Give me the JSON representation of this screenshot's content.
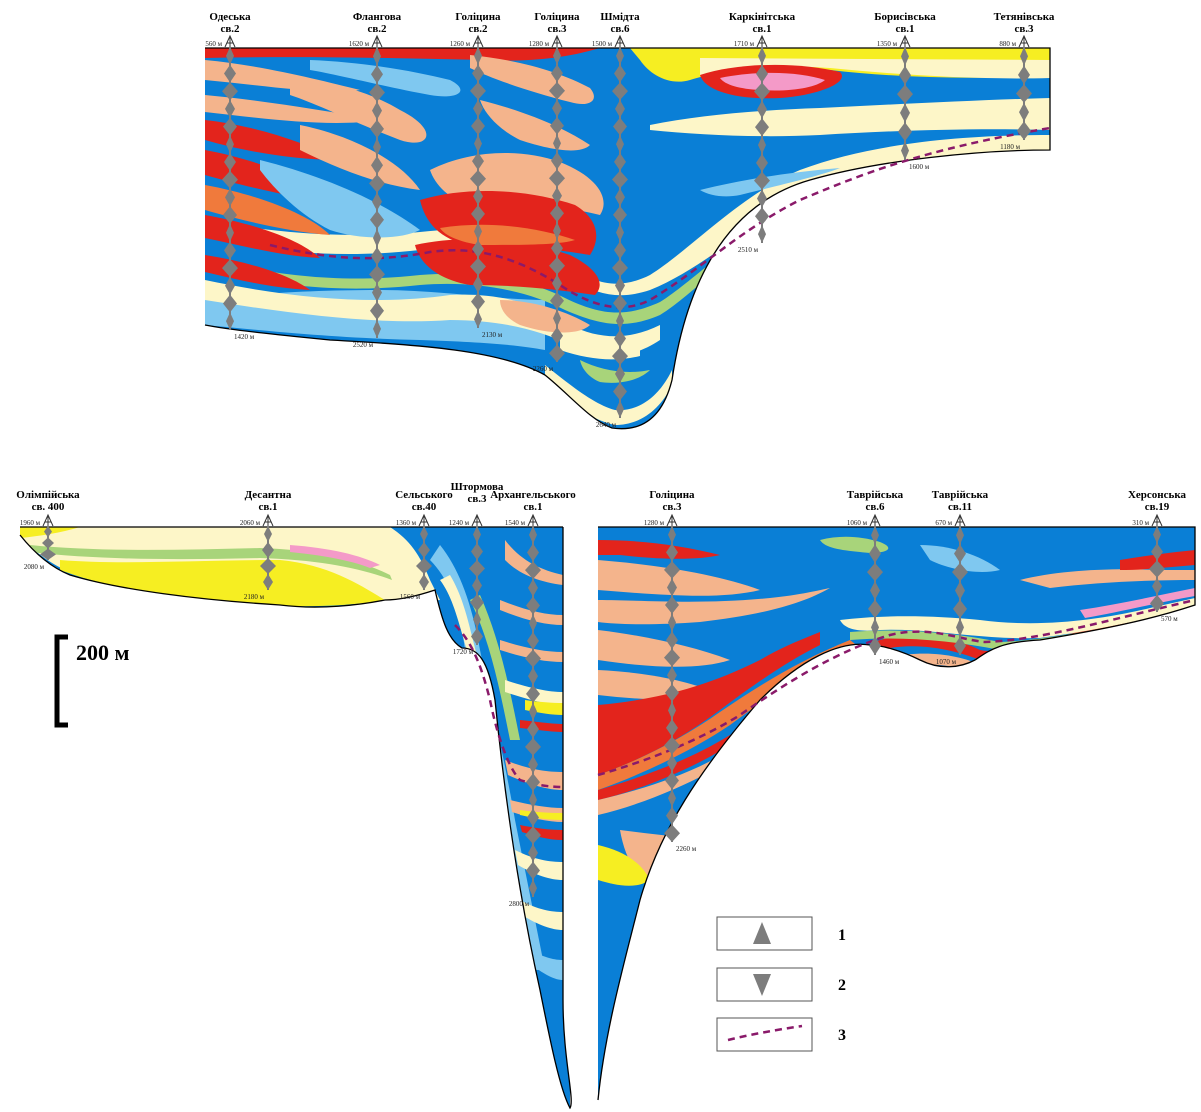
{
  "top_section": {
    "wells": [
      {
        "name": "Одеська",
        "num": "св.2",
        "top": "560 м",
        "bottom": "1420 м"
      },
      {
        "name": "Флангова",
        "num": "св.2",
        "top": "1620 м",
        "bottom": "2520 м"
      },
      {
        "name": "Голіцина",
        "num": "св.2",
        "top": "1260 м",
        "bottom": "2130 м"
      },
      {
        "name": "Голіцина",
        "num": "св.3",
        "top": "1280 м",
        "bottom": "2260 м"
      },
      {
        "name": "Шмідта",
        "num": "св.6",
        "top": "1500 м",
        "bottom": "2640 м"
      },
      {
        "name": "Каркінітська",
        "num": "св.1",
        "top": "1710 м",
        "bottom": "2510 м"
      },
      {
        "name": "Борисівська",
        "num": "св.1",
        "top": "1350 м",
        "bottom": "1600 м"
      },
      {
        "name": "Тетянівська",
        "num": "св.3",
        "top": "880 м",
        "bottom": "1180 м"
      }
    ]
  },
  "bottom_left_section": {
    "wells": [
      {
        "name": "Олімпійська",
        "num": "св. 400",
        "top": "1960 м",
        "bottom": "2080 м"
      },
      {
        "name": "Десантна",
        "num": "св.1",
        "top": "2060 м",
        "bottom": "2180 м"
      },
      {
        "name": "Сельського",
        "num": "св.40",
        "top": "1360 м",
        "bottom": "1560 м"
      },
      {
        "name": "Штормова",
        "num": "св.3",
        "top": "1240 м",
        "bottom": "1720 м"
      },
      {
        "name": "Архангельського",
        "num": "св.1",
        "top": "1540 м",
        "bottom": "2800 м"
      }
    ]
  },
  "bottom_right_section": {
    "wells": [
      {
        "name": "Голіцина",
        "num": "св.3",
        "top": "1280 м",
        "bottom": "2260 м"
      },
      {
        "name": "Таврійська",
        "num": "св.6",
        "top": "1060 м",
        "bottom": "1460 м"
      },
      {
        "name": "Таврійська",
        "num": "св.11",
        "top": "670 м",
        "bottom": "1070 м"
      },
      {
        "name": "Херсонська",
        "num": "св.19",
        "top": "310 м",
        "bottom": "570 м"
      }
    ]
  },
  "scale": {
    "label": "200 м"
  },
  "legend": {
    "items": [
      {
        "num": "1",
        "symbol": "arrow-up"
      },
      {
        "num": "2",
        "symbol": "arrow-down"
      },
      {
        "num": "3",
        "symbol": "dashed-line"
      }
    ]
  },
  "colors": {
    "blue": "#0a7fd6",
    "light_blue": "#7fc8f0",
    "cream": "#fdf6c8",
    "peach": "#f4b48c",
    "red": "#e3241c",
    "orange": "#f07a3c",
    "green": "#a8d47a",
    "yellow": "#f6ee22",
    "pink": "#f49ac8",
    "gray": "#7d7d7d",
    "dashed": "#8a1a6a"
  }
}
